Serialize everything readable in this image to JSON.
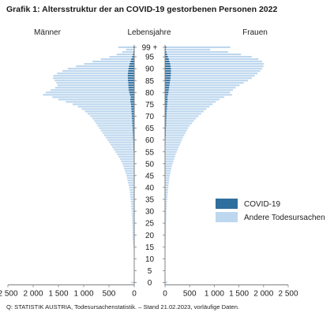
{
  "title": "Grafik 1: Altersstruktur der an COVID-19 gestorbenen Personen 2022",
  "source": "Q: STATISTIK AUSTRIA, Todesursachenstatistik. – Stand 21.02.2023, vorläufige Daten.",
  "colors": {
    "covid": "#2e6f9e",
    "other": "#bdd7ee",
    "axis": "#808080"
  },
  "chart_data": {
    "type": "bar",
    "orientation": "population-pyramid",
    "headers": {
      "left": "Männer",
      "center": "Lebensjahre",
      "right": "Frauen"
    },
    "age_ticks": [
      "0",
      "5",
      "10",
      "15",
      "20",
      "25",
      "30",
      "35",
      "40",
      "45",
      "50",
      "55",
      "60",
      "65",
      "70",
      "75",
      "80",
      "85",
      "90",
      "95",
      "99 +"
    ],
    "x_ticks": {
      "men": [
        "2 500",
        "2 000",
        "1 500",
        "1 000",
        "500",
        "0"
      ],
      "women": [
        "0",
        "500",
        "1 000",
        "1 500",
        "2 000",
        "2 500"
      ]
    },
    "xlim": [
      0,
      2500
    ],
    "legend": {
      "placement": "right-lower",
      "entries": [
        "COVID-19",
        "Andere Todesursachen"
      ]
    },
    "ages": [
      0,
      1,
      2,
      3,
      4,
      5,
      6,
      7,
      8,
      9,
      10,
      11,
      12,
      13,
      14,
      15,
      16,
      17,
      18,
      19,
      20,
      21,
      22,
      23,
      24,
      25,
      26,
      27,
      28,
      29,
      30,
      31,
      32,
      33,
      34,
      35,
      36,
      37,
      38,
      39,
      40,
      41,
      42,
      43,
      44,
      45,
      46,
      47,
      48,
      49,
      50,
      51,
      52,
      53,
      54,
      55,
      56,
      57,
      58,
      59,
      60,
      61,
      62,
      63,
      64,
      65,
      66,
      67,
      68,
      69,
      70,
      71,
      72,
      73,
      74,
      75,
      76,
      77,
      78,
      79,
      80,
      81,
      82,
      83,
      84,
      85,
      86,
      87,
      88,
      89,
      90,
      91,
      92,
      93,
      94,
      95,
      96,
      97,
      98,
      99
    ],
    "series": [
      {
        "name": "COVID-19",
        "group": "men",
        "values": [
          0,
          0,
          0,
          0,
          0,
          0,
          0,
          0,
          0,
          0,
          0,
          0,
          0,
          0,
          0,
          0,
          0,
          0,
          0,
          0,
          0,
          0,
          0,
          0,
          0,
          0,
          0,
          0,
          0,
          0,
          0,
          0,
          0,
          0,
          0,
          1,
          1,
          1,
          1,
          1,
          2,
          2,
          2,
          3,
          3,
          4,
          4,
          5,
          6,
          6,
          7,
          8,
          9,
          11,
          12,
          13,
          15,
          16,
          18,
          20,
          22,
          25,
          27,
          29,
          32,
          35,
          38,
          40,
          43,
          46,
          50,
          53,
          56,
          59,
          62,
          68,
          76,
          80,
          70,
          85,
          100,
          110,
          115,
          118,
          120,
          125,
          128,
          130,
          128,
          122,
          115,
          105,
          92,
          75,
          60,
          42,
          28,
          18,
          11,
          16
        ]
      },
      {
        "name": "Andere Todesursachen",
        "group": "men",
        "values": [
          60,
          8,
          6,
          5,
          4,
          4,
          4,
          4,
          4,
          5,
          5,
          6,
          7,
          8,
          10,
          14,
          20,
          25,
          30,
          32,
          34,
          35,
          36,
          37,
          38,
          40,
          42,
          44,
          46,
          48,
          52,
          55,
          58,
          60,
          65,
          70,
          75,
          80,
          85,
          90,
          100,
          110,
          120,
          130,
          140,
          150,
          165,
          180,
          195,
          210,
          230,
          250,
          270,
          300,
          330,
          360,
          390,
          420,
          450,
          480,
          510,
          540,
          570,
          600,
          630,
          660,
          690,
          720,
          750,
          780,
          820,
          870,
          920,
          980,
          1050,
          1150,
          1280,
          1420,
          1550,
          1720,
          1650,
          1550,
          1450,
          1400,
          1420,
          1450,
          1480,
          1470,
          1400,
          1300,
          1200,
          1050,
          900,
          750,
          600,
          450,
          320,
          220,
          150,
          300
        ]
      },
      {
        "name": "COVID-19",
        "group": "women",
        "values": [
          0,
          0,
          0,
          0,
          0,
          0,
          0,
          0,
          0,
          0,
          0,
          0,
          0,
          0,
          0,
          0,
          0,
          0,
          0,
          0,
          0,
          0,
          0,
          0,
          0,
          0,
          0,
          0,
          0,
          0,
          0,
          0,
          0,
          0,
          0,
          1,
          1,
          1,
          1,
          1,
          1,
          1,
          2,
          2,
          2,
          3,
          3,
          3,
          4,
          4,
          5,
          5,
          6,
          7,
          7,
          8,
          9,
          10,
          11,
          12,
          13,
          14,
          16,
          17,
          19,
          21,
          23,
          25,
          27,
          29,
          31,
          33,
          36,
          39,
          42,
          46,
          50,
          54,
          50,
          60,
          70,
          78,
          85,
          92,
          98,
          105,
          112,
          118,
          120,
          122,
          120,
          115,
          105,
          92,
          78,
          60,
          42,
          28,
          18,
          25
        ]
      },
      {
        "name": "Andere Todesursachen",
        "group": "women",
        "values": [
          45,
          6,
          5,
          4,
          3,
          3,
          3,
          3,
          3,
          4,
          4,
          5,
          5,
          6,
          7,
          9,
          11,
          13,
          15,
          16,
          17,
          18,
          19,
          20,
          21,
          22,
          23,
          24,
          26,
          28,
          30,
          32,
          34,
          36,
          40,
          44,
          48,
          52,
          56,
          60,
          65,
          70,
          76,
          82,
          88,
          95,
          105,
          115,
          125,
          135,
          150,
          165,
          180,
          195,
          210,
          230,
          250,
          270,
          290,
          310,
          330,
          350,
          375,
          400,
          425,
          450,
          480,
          520,
          560,
          600,
          650,
          700,
          750,
          800,
          860,
          920,
          980,
          1050,
          1150,
          1300,
          1250,
          1300,
          1350,
          1420,
          1500,
          1580,
          1650,
          1700,
          1760,
          1810,
          1850,
          1880,
          1900,
          1880,
          1820,
          1700,
          1500,
          1250,
          900,
          1300
        ]
      }
    ]
  }
}
